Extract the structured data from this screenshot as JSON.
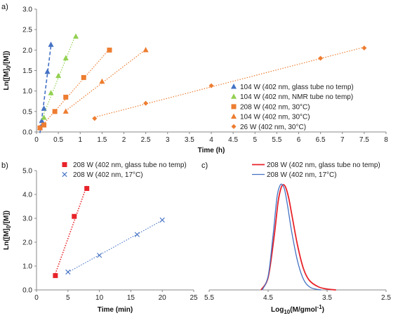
{
  "chart_data": [
    {
      "panel_label": "a)",
      "type": "scatter",
      "xlabel": "Time (h)",
      "ylabel": "Ln([M]0/[M])",
      "xlim": [
        0,
        8
      ],
      "ylim": [
        0,
        3.0
      ],
      "x_ticks": [
        "0",
        "0.5",
        "1",
        "1.5",
        "2",
        "2.5",
        "3",
        "3.5",
        "4",
        "4.5",
        "5",
        "5.5",
        "6",
        "6.5",
        "7",
        "7.5",
        "8"
      ],
      "y_ticks": [
        "0.0",
        "0.5",
        "1.0",
        "1.5",
        "2.0",
        "2.5",
        "3.0"
      ],
      "legend_position": "bottom-right",
      "series": [
        {
          "name": "104 W (402 nm, glass tube no temp)",
          "color": "#4472C4",
          "marker": "triangle",
          "trendline": "dashed",
          "x": [
            0.08,
            0.12,
            0.17,
            0.25,
            0.33
          ],
          "y": [
            0.1,
            0.27,
            0.57,
            1.47,
            2.13
          ]
        },
        {
          "name": "104 W (402 nm, NMR tube no temp)",
          "color": "#92D050",
          "marker": "triangle",
          "trendline": "dotted",
          "x": [
            0.17,
            0.33,
            0.5,
            0.67,
            0.9
          ],
          "y": [
            0.35,
            0.95,
            1.37,
            1.8,
            2.33
          ]
        },
        {
          "name": "208 W (402 nm, 30°C)",
          "color": "#ED7D31",
          "marker": "square",
          "trendline": "dotted",
          "x": [
            0.08,
            0.17,
            0.42,
            0.67,
            1.08,
            1.67
          ],
          "y": [
            0.1,
            0.17,
            0.5,
            0.85,
            1.33,
            2.0
          ]
        },
        {
          "name": "104 W (402 nm, 30°C)",
          "color": "#ED7D31",
          "marker": "triangle",
          "trendline": "dotted",
          "x": [
            0.67,
            1.5,
            2.5
          ],
          "y": [
            0.5,
            1.23,
            2.0
          ]
        },
        {
          "name": "26 W (402 nm, 30°C)",
          "color": "#ED7D31",
          "marker": "diamond",
          "trendline": "dotted",
          "x": [
            1.33,
            2.5,
            4.0,
            6.5,
            7.5
          ],
          "y": [
            0.33,
            0.7,
            1.13,
            1.8,
            2.05
          ]
        }
      ]
    },
    {
      "panel_label": "b)",
      "type": "scatter",
      "xlabel": "Time (min)",
      "ylabel": "Ln([M]0/[M])",
      "xlim": [
        0,
        25
      ],
      "ylim": [
        0,
        5.0
      ],
      "x_ticks": [
        "0",
        "5",
        "10",
        "15",
        "20",
        "25"
      ],
      "y_ticks": [
        "0.0",
        "1.0",
        "2.0",
        "3.0",
        "4.0",
        "5.0"
      ],
      "legend_position": "top-left",
      "series": [
        {
          "name": "208 W (402 nm, glass tube no temp)",
          "color": "#E8232A",
          "marker": "square",
          "trendline": "dotted",
          "x": [
            3,
            6,
            8
          ],
          "y": [
            0.6,
            3.08,
            4.25
          ]
        },
        {
          "name": "208 W (402 nm, 17°C)",
          "color": "#4472C4",
          "marker": "x",
          "trendline": "dotted",
          "x": [
            5,
            10,
            16,
            20
          ],
          "y": [
            0.75,
            1.45,
            2.32,
            2.93
          ]
        }
      ]
    },
    {
      "panel_label": "c)",
      "type": "line",
      "xlabel": "Log10(M/gmol-1)",
      "x_reversed": true,
      "xlim": [
        5.5,
        2.5
      ],
      "x_ticks": [
        "5.5",
        "4.5",
        "3.5",
        "2.5"
      ],
      "legend_position": "top-right",
      "series": [
        {
          "name": "208 W (402 nm, glass tube no temp)",
          "color": "#E8232A",
          "x": [
            4.62,
            4.5,
            4.4,
            4.33,
            4.28,
            4.24,
            4.2,
            4.15,
            4.1,
            4.0,
            3.9,
            3.8,
            3.65,
            3.5,
            3.35
          ],
          "y": [
            0.0,
            0.12,
            0.5,
            0.84,
            0.97,
            1.0,
            0.97,
            0.87,
            0.72,
            0.42,
            0.2,
            0.09,
            0.03,
            0.008,
            0.0
          ]
        },
        {
          "name": "208 W (402 nm, 17°C)",
          "color": "#4472C4",
          "x": [
            4.6,
            4.5,
            4.42,
            4.35,
            4.3,
            4.26,
            4.22,
            4.17,
            4.1,
            4.0,
            3.9,
            3.8,
            3.7,
            3.6
          ],
          "y": [
            0.0,
            0.13,
            0.5,
            0.88,
            0.99,
            1.0,
            0.95,
            0.8,
            0.55,
            0.27,
            0.1,
            0.03,
            0.008,
            0.0
          ]
        }
      ]
    }
  ]
}
